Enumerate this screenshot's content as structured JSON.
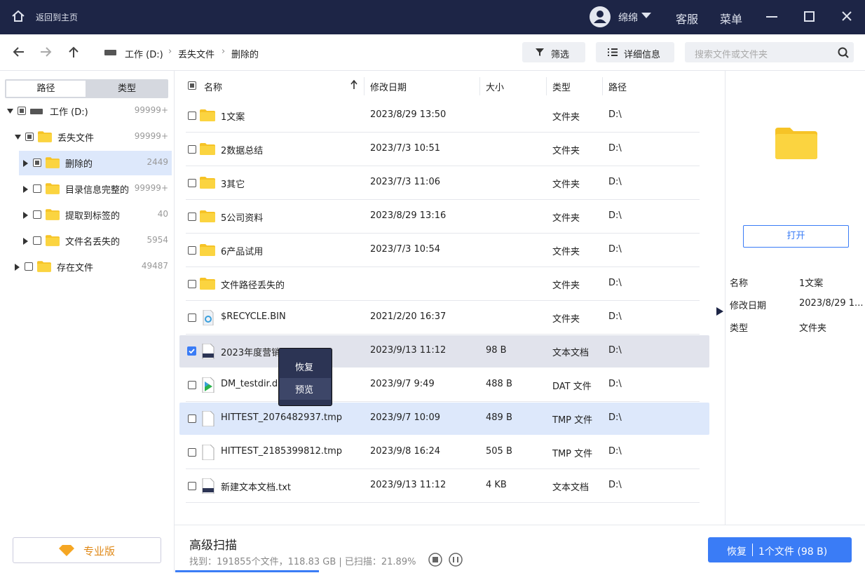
{
  "topbar": {
    "home": "返回到主页",
    "user": "绵绵",
    "service": "客服",
    "menu": "菜单"
  },
  "nav": {
    "breadcrumb": [
      "工作 (D:)",
      "丢失文件",
      "删除的"
    ],
    "filter": "筛选",
    "details": "详细信息",
    "search": "搜索文件或文件夹"
  },
  "sidebar": {
    "tabs": [
      "路径",
      "类型"
    ],
    "tree": [
      {
        "label": "工作 (D:)",
        "count": "99999+"
      },
      {
        "label": "丢失文件",
        "count": "99999+"
      },
      {
        "label": "删除的",
        "count": "2449"
      },
      {
        "label": "目录信息完整的",
        "count": "99999+"
      },
      {
        "label": "提取到标签的",
        "count": "40"
      },
      {
        "label": "文件名丢失的",
        "count": "5954"
      },
      {
        "label": "存在文件",
        "count": "49487"
      }
    ],
    "pro": "专业版"
  },
  "table": {
    "headers": [
      "名称",
      "修改日期",
      "大小",
      "类型",
      "路径"
    ],
    "rows": [
      {
        "name": "1文案",
        "date": "2023/8/29 13:50",
        "type": "文件夹",
        "path": "D:\\"
      },
      {
        "name": "2数据总结",
        "date": "2023/7/3 10:51",
        "type": "文件夹",
        "path": "D:\\"
      },
      {
        "name": "3其它",
        "date": "2023/7/3 11:06",
        "type": "文件夹",
        "path": "D:\\"
      },
      {
        "name": "5公司资料",
        "date": "2023/8/29 13:16",
        "type": "文件夹",
        "path": "D:\\"
      },
      {
        "name": "6产品试用",
        "date": "2023/7/3 10:54",
        "type": "文件夹",
        "path": "D:\\"
      },
      {
        "name": "文件路径丢失的",
        "type": "文件夹",
        "path": "D:\\"
      },
      {
        "name": "$RECYCLE.BIN",
        "date": "2021/2/20 16:37",
        "type": "文件夹",
        "path": "D:\\"
      },
      {
        "name": "2023年度营销",
        "date": "2023/9/13 11:12",
        "size": "98 B",
        "type": "文本文档",
        "path": "D:\\"
      },
      {
        "name": "DM_testdir.da",
        "date": "2023/9/7 9:49",
        "size": "488 B",
        "type": "DAT 文件",
        "path": "D:\\"
      },
      {
        "name": "HITTEST_2076482937.tmp",
        "date": "2023/9/7 10:09",
        "size": "489 B",
        "type": "TMP 文件",
        "path": "D:\\"
      },
      {
        "name": "HITTEST_2185399812.tmp",
        "date": "2023/9/8 16:24",
        "size": "505 B",
        "type": "TMP 文件",
        "path": "D:\\"
      },
      {
        "name": "新建文本文档.txt",
        "date": "2023/9/13 11:12",
        "size": "4 KB",
        "type": "文本文档",
        "path": "D:\\"
      }
    ]
  },
  "context_menu": [
    "恢复",
    "预览"
  ],
  "details": {
    "open": "打开",
    "fields": [
      [
        "名称",
        "1文案"
      ],
      [
        "修改日期",
        "2023/8/29 1..."
      ],
      [
        "类型",
        "文件夹"
      ]
    ]
  },
  "footer": {
    "title": "高级扫描",
    "status": "找到：191855个文件，118.83 GB | 已扫描：21.89%",
    "recover": "恢复",
    "recover_info": "1个文件 (98 B)"
  }
}
